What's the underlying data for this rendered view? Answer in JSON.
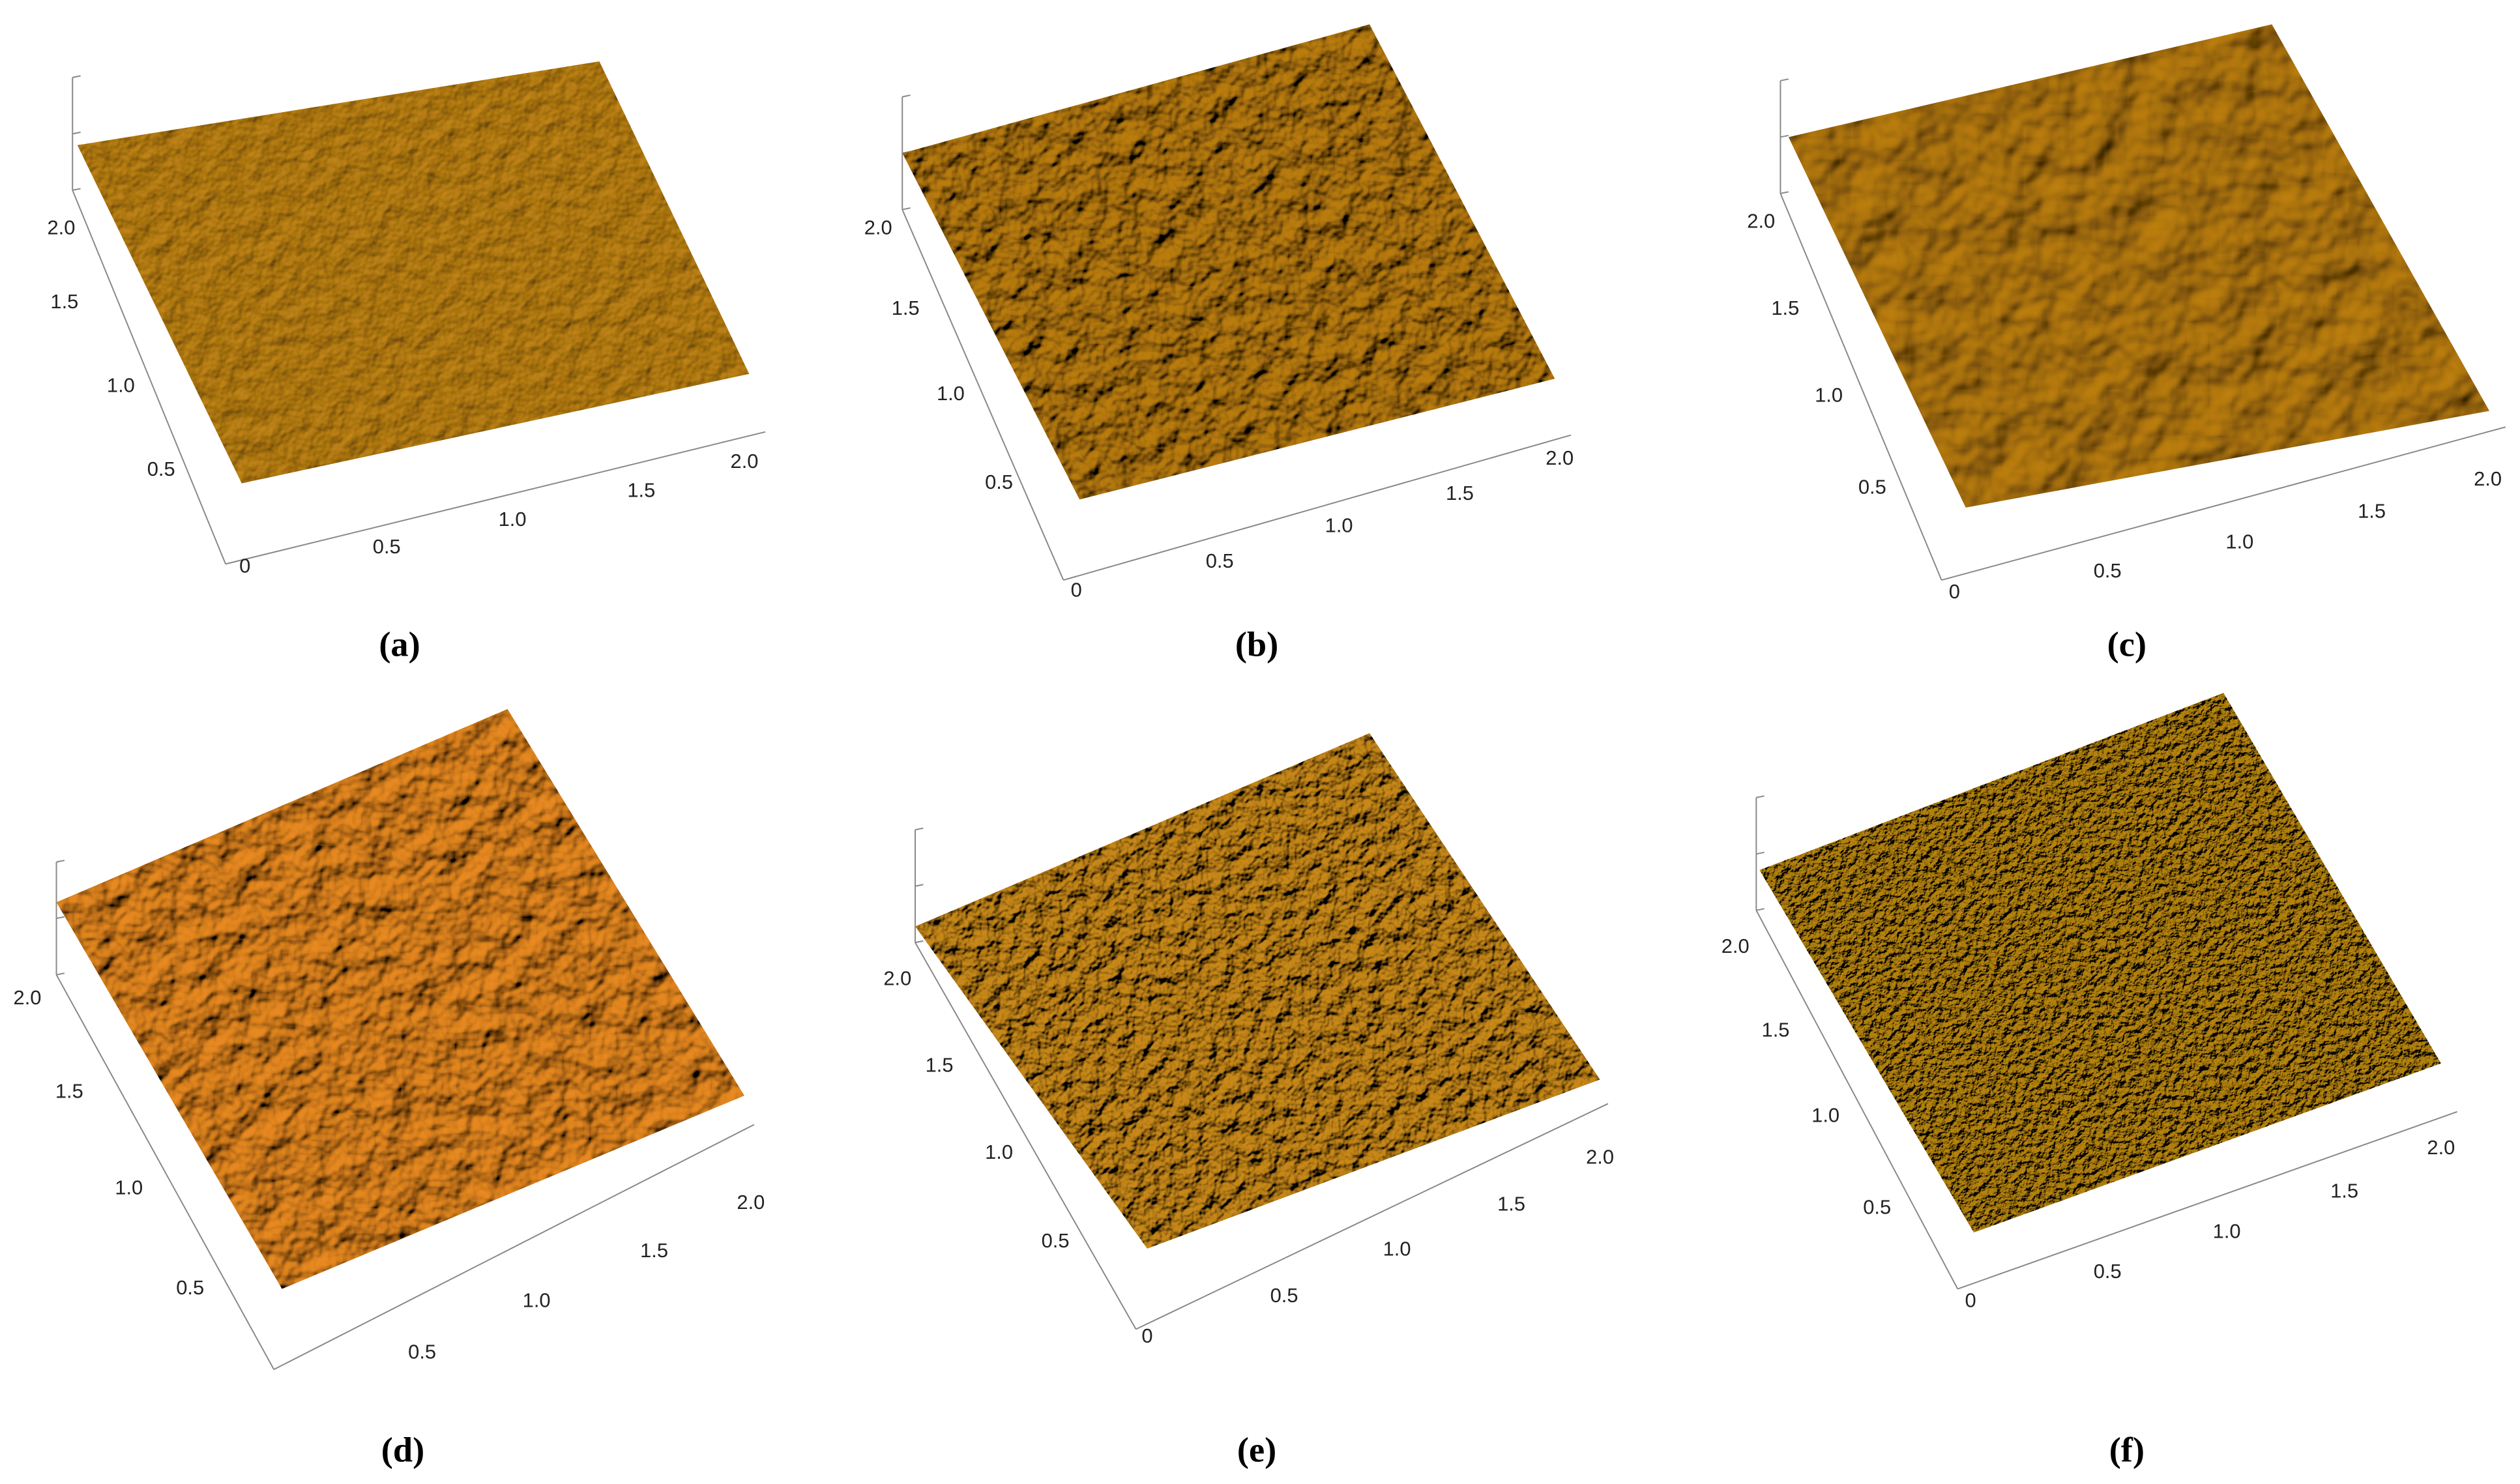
{
  "panels": [
    {
      "caption": "(a)",
      "x_ticks": [
        "0",
        "0.5",
        "1.0",
        "1.5",
        "2.0"
      ],
      "y_ticks": [
        "2.0",
        "1.5",
        "1.0",
        "0.5"
      ]
    },
    {
      "caption": "(b)",
      "x_ticks": [
        "0",
        "0.5",
        "1.0",
        "1.5",
        "2.0"
      ],
      "y_ticks": [
        "2.0",
        "1.5",
        "1.0",
        "0.5"
      ]
    },
    {
      "caption": "(c)",
      "x_ticks": [
        "0",
        "0.5",
        "1.0",
        "1.5",
        "2.0"
      ],
      "y_ticks": [
        "2.0",
        "1.5",
        "1.0",
        "0.5"
      ]
    },
    {
      "caption": "(d)",
      "x_ticks": [
        "0.5",
        "1.0",
        "1.5",
        "2.0"
      ],
      "y_ticks": [
        "2.0",
        "1.5",
        "1.0",
        "0.5"
      ]
    },
    {
      "caption": "(e)",
      "x_ticks": [
        "0",
        "0.5",
        "1.0",
        "1.5",
        "2.0"
      ],
      "y_ticks": [
        "2.0",
        "1.5",
        "1.0",
        "0.5"
      ]
    },
    {
      "caption": "(f)",
      "x_ticks": [
        "0",
        "0.5",
        "1.0",
        "1.5",
        "2.0"
      ],
      "y_ticks": [
        "2.0",
        "1.5",
        "1.0",
        "0.5"
      ]
    }
  ]
}
